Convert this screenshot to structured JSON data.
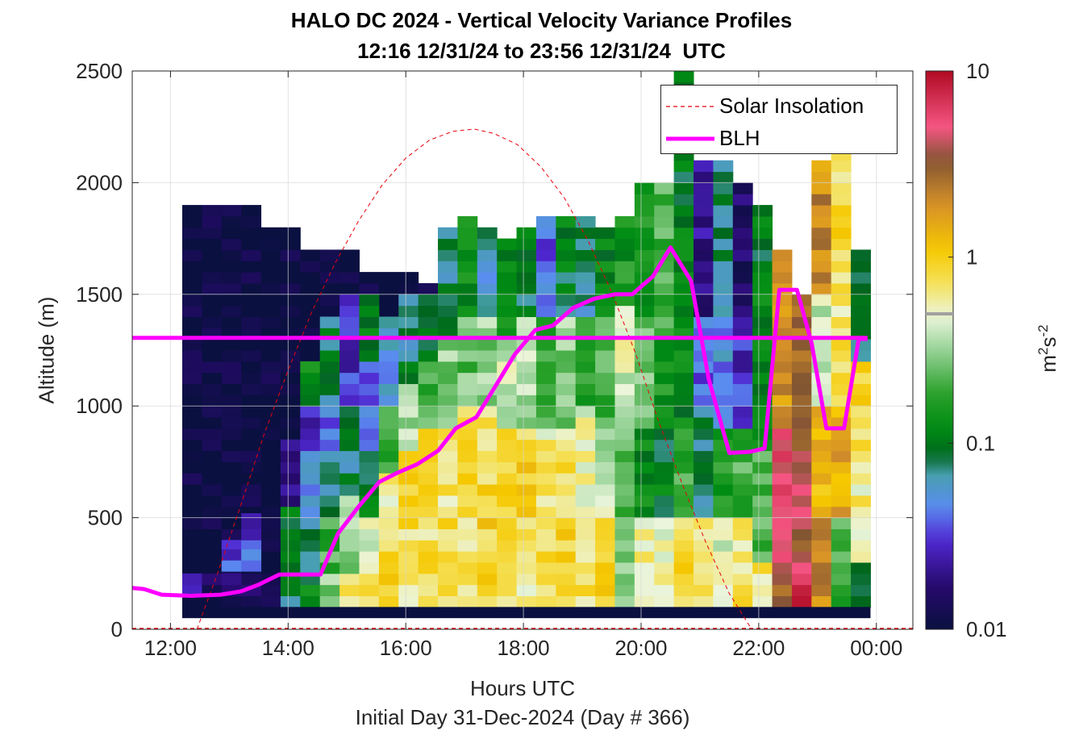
{
  "title_line1": "HALO DC 2024 - Vertical Velocity Variance Profiles",
  "title_line2": "12:16 12/31/24 to 23:56 12/31/24  UTC",
  "chart_data": {
    "type": "heatmap",
    "title": "HALO DC 2024 - Vertical Velocity Variance Profiles",
    "subtitle": "12:16 12/31/24 to 23:56 12/31/24  UTC",
    "xlabel": "Hours UTC",
    "xlabel2": "Initial Day 31-Dec-2024 (Day # 366)",
    "ylabel": "Altitude (m)",
    "colorbar_label": "m²s⁻²",
    "colorbar_label_base": "m",
    "colorbar_label_sup1": "2",
    "colorbar_label_mid": "s",
    "colorbar_label_sup2": "-2",
    "x_range_hours": [
      11.35,
      24.62
    ],
    "y_range_m": [
      0,
      2500
    ],
    "x_ticks": [
      {
        "hour": 12,
        "label": "12:00"
      },
      {
        "hour": 14,
        "label": "14:00"
      },
      {
        "hour": 16,
        "label": "16:00"
      },
      {
        "hour": 18,
        "label": "18:00"
      },
      {
        "hour": 20,
        "label": "20:00"
      },
      {
        "hour": 22,
        "label": "22:00"
      },
      {
        "hour": 24,
        "label": "00:00"
      }
    ],
    "y_ticks": [
      0,
      500,
      1000,
      1500,
      2000,
      2500
    ],
    "colorbar_scale": "log",
    "colorbar_range": [
      0.01,
      10
    ],
    "colorbar_ticks": [
      {
        "value": 0.01,
        "label": "0.01"
      },
      {
        "value": 0.1,
        "label": "0.1"
      },
      {
        "value": 1,
        "label": "1"
      },
      {
        "value": 10,
        "label": "10"
      }
    ],
    "grid": true,
    "legend_position": "top-right",
    "series": [
      {
        "name": "Solar Insolation",
        "style": "dashed",
        "color": "#e8000b",
        "x_hours": [
          12.45,
          12.8,
          13.2,
          13.6,
          14.0,
          14.4,
          14.8,
          15.2,
          15.6,
          16.0,
          16.4,
          16.8,
          17.17,
          17.5,
          17.9,
          18.3,
          18.7,
          19.1,
          19.5,
          19.9,
          20.3,
          20.7,
          21.1,
          21.5,
          21.88
        ],
        "y_m": [
          0,
          250,
          560,
          880,
          1160,
          1420,
          1640,
          1830,
          1990,
          2110,
          2190,
          2230,
          2240,
          2220,
          2170,
          2070,
          1930,
          1740,
          1510,
          1240,
          930,
          650,
          390,
          160,
          0
        ]
      },
      {
        "name": "BLH",
        "style": "solid",
        "color": "#ff00ff",
        "x_hours": [
          11.35,
          11.55,
          11.85,
          12.35,
          12.85,
          13.2,
          13.5,
          13.85,
          14.2,
          14.55,
          14.85,
          15.2,
          15.55,
          15.85,
          16.2,
          16.55,
          16.85,
          17.2,
          17.55,
          17.85,
          18.2,
          18.5,
          18.85,
          19.2,
          19.55,
          19.85,
          20.2,
          20.5,
          20.85,
          21.15,
          21.5,
          21.85,
          22.1,
          22.35,
          22.65,
          22.9,
          23.15,
          23.45,
          23.7,
          23.85
        ],
        "y_m": [
          185,
          180,
          155,
          150,
          155,
          170,
          200,
          245,
          245,
          245,
          430,
          550,
          660,
          700,
          740,
          800,
          900,
          950,
          1100,
          1230,
          1340,
          1360,
          1440,
          1480,
          1500,
          1500,
          1580,
          1710,
          1560,
          1120,
          790,
          795,
          810,
          1520,
          1520,
          1280,
          900,
          900,
          1300,
          1300
        ]
      },
      {
        "name": "BLH-constant",
        "color": "#ff00ff",
        "y_m": 1305
      }
    ],
    "grid_info": {
      "bins_x_start_hour": 12.2,
      "bins_x_end_hour": 23.9,
      "n_time_bins": 35,
      "bin_height_m": 50,
      "y_bottom_m": 100,
      "bottom_row_value": 0.01
    },
    "blocks": [
      [
        0,
        4,
        100,
        1900,
        0.01
      ],
      [
        4,
        6,
        100,
        1800,
        0.01
      ],
      [
        6,
        9,
        100,
        1700,
        0.01
      ],
      [
        9,
        12,
        100,
        1600,
        0.01
      ],
      [
        12,
        15,
        100,
        1550,
        0.01
      ],
      [
        0,
        1,
        150,
        250,
        0.02
      ],
      [
        1,
        4,
        150,
        250,
        0.015
      ],
      [
        2,
        4,
        260,
        400,
        0.035
      ],
      [
        3,
        4,
        400,
        520,
        0.025
      ],
      [
        5,
        6,
        100,
        250,
        0.09
      ],
      [
        5,
        6,
        250,
        550,
        0.1
      ],
      [
        5,
        6,
        550,
        850,
        0.02
      ],
      [
        6,
        7,
        100,
        250,
        0.11
      ],
      [
        6,
        7,
        250,
        500,
        0.08
      ],
      [
        6,
        7,
        500,
        800,
        0.05
      ],
      [
        6,
        7,
        800,
        1000,
        0.025
      ],
      [
        6,
        7,
        1000,
        1200,
        0.12
      ],
      [
        7,
        8,
        100,
        250,
        0.3
      ],
      [
        7,
        8,
        250,
        500,
        0.2
      ],
      [
        7,
        8,
        500,
        800,
        0.06
      ],
      [
        7,
        8,
        800,
        1000,
        0.04
      ],
      [
        7,
        8,
        1000,
        1400,
        0.08
      ],
      [
        8,
        9,
        100,
        250,
        0.6
      ],
      [
        8,
        9,
        250,
        600,
        0.3
      ],
      [
        8,
        9,
        600,
        1000,
        0.08
      ],
      [
        8,
        9,
        1000,
        1500,
        0.03
      ],
      [
        9,
        10,
        100,
        250,
        0.9
      ],
      [
        9,
        10,
        250,
        500,
        0.4
      ],
      [
        9,
        10,
        500,
        800,
        0.1
      ],
      [
        9,
        10,
        800,
        1200,
        0.04
      ],
      [
        9,
        10,
        1200,
        1500,
        0.12
      ],
      [
        10,
        11,
        100,
        400,
        0.9
      ],
      [
        10,
        11,
        400,
        700,
        0.6
      ],
      [
        10,
        11,
        700,
        1000,
        0.2
      ],
      [
        10,
        11,
        1000,
        1400,
        0.05
      ],
      [
        11,
        12,
        100,
        450,
        0.7
      ],
      [
        11,
        12,
        450,
        800,
        0.8
      ],
      [
        11,
        12,
        800,
        1100,
        0.35
      ],
      [
        11,
        12,
        1100,
        1500,
        0.08
      ],
      [
        12,
        13,
        100,
        500,
        0.75
      ],
      [
        12,
        13,
        500,
        900,
        0.9
      ],
      [
        12,
        13,
        900,
        1200,
        0.2
      ],
      [
        12,
        13,
        1200,
        1500,
        0.1
      ],
      [
        13,
        14,
        100,
        500,
        0.85
      ],
      [
        13,
        14,
        500,
        900,
        0.7
      ],
      [
        13,
        14,
        900,
        1300,
        0.3
      ],
      [
        13,
        14,
        1300,
        1800,
        0.08
      ],
      [
        14,
        15,
        100,
        500,
        0.7
      ],
      [
        14,
        15,
        500,
        1000,
        0.9
      ],
      [
        14,
        15,
        1000,
        1400,
        0.25
      ],
      [
        14,
        15,
        1400,
        1850,
        0.12
      ],
      [
        15,
        16,
        100,
        500,
        0.9
      ],
      [
        15,
        16,
        500,
        1000,
        0.8
      ],
      [
        15,
        16,
        1000,
        1400,
        0.3
      ],
      [
        15,
        16,
        1400,
        1800,
        0.06
      ],
      [
        16,
        17,
        100,
        500,
        0.75
      ],
      [
        16,
        17,
        500,
        900,
        0.85
      ],
      [
        16,
        17,
        900,
        1300,
        0.4
      ],
      [
        16,
        17,
        1300,
        1750,
        0.12
      ],
      [
        17,
        18,
        100,
        500,
        0.6
      ],
      [
        17,
        18,
        500,
        900,
        0.9
      ],
      [
        17,
        18,
        900,
        1400,
        0.35
      ],
      [
        17,
        18,
        1400,
        1800,
        0.09
      ],
      [
        18,
        19,
        100,
        500,
        0.8
      ],
      [
        18,
        19,
        500,
        900,
        0.6
      ],
      [
        18,
        19,
        900,
        1400,
        0.2
      ],
      [
        18,
        19,
        1400,
        1850,
        0.04
      ],
      [
        19,
        20,
        100,
        500,
        0.9
      ],
      [
        19,
        20,
        500,
        900,
        0.7
      ],
      [
        19,
        20,
        900,
        1400,
        0.3
      ],
      [
        19,
        20,
        1400,
        1850,
        0.1
      ],
      [
        20,
        21,
        100,
        500,
        0.7
      ],
      [
        20,
        21,
        500,
        1000,
        0.5
      ],
      [
        20,
        21,
        1000,
        1400,
        0.15
      ],
      [
        20,
        21,
        1400,
        1850,
        0.07
      ],
      [
        21,
        22,
        100,
        500,
        0.9
      ],
      [
        21,
        22,
        500,
        900,
        0.4
      ],
      [
        21,
        22,
        900,
        1400,
        0.22
      ],
      [
        21,
        22,
        1400,
        1800,
        0.11
      ],
      [
        22,
        23,
        100,
        500,
        0.3
      ],
      [
        22,
        23,
        500,
        1000,
        0.25
      ],
      [
        22,
        23,
        1000,
        1450,
        0.45
      ],
      [
        22,
        23,
        1450,
        1850,
        0.15
      ],
      [
        23,
        24,
        100,
        500,
        0.6
      ],
      [
        23,
        24,
        500,
        900,
        0.12
      ],
      [
        23,
        24,
        900,
        1400,
        0.3
      ],
      [
        23,
        24,
        1400,
        2000,
        0.14
      ],
      [
        24,
        25,
        100,
        500,
        0.5
      ],
      [
        24,
        25,
        500,
        900,
        0.1
      ],
      [
        24,
        25,
        900,
        1300,
        0.15
      ],
      [
        24,
        25,
        1300,
        2000,
        0.2
      ],
      [
        25,
        26,
        100,
        500,
        0.8
      ],
      [
        25,
        26,
        500,
        900,
        0.2
      ],
      [
        25,
        26,
        900,
        1400,
        0.12
      ],
      [
        25,
        26,
        1400,
        2500,
        0.1
      ],
      [
        26,
        27,
        100,
        500,
        0.6
      ],
      [
        26,
        27,
        500,
        1000,
        0.08
      ],
      [
        26,
        27,
        1000,
        1400,
        0.04
      ],
      [
        26,
        27,
        1400,
        2100,
        0.02
      ],
      [
        27,
        28,
        100,
        500,
        0.4
      ],
      [
        27,
        28,
        500,
        900,
        0.15
      ],
      [
        27,
        28,
        900,
        1400,
        0.05
      ],
      [
        27,
        28,
        1400,
        2100,
        0.08
      ],
      [
        28,
        29,
        100,
        500,
        0.7
      ],
      [
        28,
        29,
        500,
        900,
        0.2
      ],
      [
        28,
        29,
        900,
        1400,
        0.03
      ],
      [
        28,
        29,
        1400,
        2000,
        0.015
      ],
      [
        29,
        30,
        100,
        300,
        0.7
      ],
      [
        29,
        30,
        300,
        800,
        0.2
      ],
      [
        29,
        30,
        800,
        1500,
        0.12
      ],
      [
        29,
        30,
        1500,
        1900,
        0.1
      ],
      [
        30,
        31,
        100,
        250,
        3
      ],
      [
        30,
        31,
        250,
        900,
        5
      ],
      [
        30,
        31,
        900,
        1700,
        2
      ],
      [
        31,
        32,
        100,
        250,
        7
      ],
      [
        31,
        32,
        250,
        800,
        4
      ],
      [
        31,
        32,
        800,
        1500,
        2.5
      ],
      [
        32,
        33,
        100,
        500,
        2
      ],
      [
        32,
        33,
        500,
        1000,
        1.2
      ],
      [
        32,
        33,
        1000,
        1500,
        0.4
      ],
      [
        32,
        33,
        1500,
        2100,
        2
      ],
      [
        33,
        34,
        100,
        500,
        0.2
      ],
      [
        33,
        34,
        500,
        1000,
        1.5
      ],
      [
        33,
        34,
        1000,
        1500,
        0.7
      ],
      [
        33,
        34,
        1500,
        2200,
        0.8
      ],
      [
        34,
        35,
        100,
        300,
        0.09
      ],
      [
        34,
        35,
        300,
        800,
        0.6
      ],
      [
        34,
        35,
        800,
        1200,
        0.8
      ],
      [
        34,
        35,
        1200,
        1700,
        0.07
      ]
    ]
  },
  "legend": {
    "solar_label": "Solar Insolation",
    "blh_label": "BLH"
  }
}
